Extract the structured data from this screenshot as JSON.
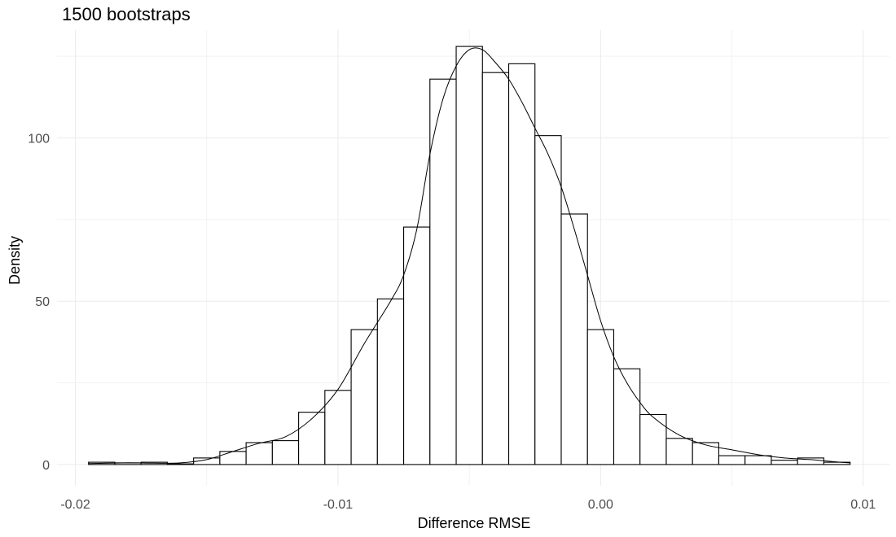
{
  "chart_data": {
    "type": "bar",
    "title": "1500  bootstraps",
    "xlabel": "Difference RMSE",
    "ylabel": "Density",
    "xlim": [
      -0.0207,
      0.011
    ],
    "ylim": [
      -6.5,
      133
    ],
    "x_ticks": [
      -0.02,
      -0.01,
      0.0,
      0.01
    ],
    "x_tick_labels": [
      "-0.02",
      "-0.01",
      "0.00",
      "0.01"
    ],
    "y_ticks": [
      0,
      50,
      100
    ],
    "y_tick_labels": [
      "0",
      "50",
      "100"
    ],
    "x_minor_ticks": [
      -0.015,
      -0.005,
      0.005
    ],
    "y_minor_ticks": [
      25,
      75,
      125
    ],
    "grid": true,
    "legend": "none",
    "bin_width": 0.001,
    "histogram": {
      "bin_centers": [
        -0.019,
        -0.018,
        -0.017,
        -0.016,
        -0.015,
        -0.014,
        -0.013,
        -0.012,
        -0.011,
        -0.01,
        -0.009,
        -0.008,
        -0.007,
        -0.006,
        -0.005,
        -0.004,
        -0.003,
        -0.002,
        -0.001,
        0.0,
        0.001,
        0.002,
        0.003,
        0.004,
        0.005,
        0.006,
        0.007,
        0.008,
        0.009
      ],
      "densities": [
        0.7,
        0.5,
        0.7,
        0.2,
        2.0,
        4.0,
        6.7,
        7.3,
        16.0,
        22.7,
        41.3,
        50.7,
        72.7,
        118.0,
        128.0,
        120.0,
        122.7,
        100.7,
        76.7,
        41.3,
        29.3,
        15.3,
        8.0,
        6.7,
        2.7,
        2.7,
        1.3,
        2.0,
        0.7
      ]
    },
    "density_curve": {
      "x": [
        -0.0195,
        -0.018,
        -0.017,
        -0.016,
        -0.015,
        -0.014,
        -0.013,
        -0.012,
        -0.011,
        -0.01,
        -0.009,
        -0.008,
        -0.0075,
        -0.007,
        -0.0065,
        -0.006,
        -0.0055,
        -0.005,
        -0.0045,
        -0.004,
        -0.0035,
        -0.003,
        -0.0025,
        -0.002,
        -0.0015,
        -0.001,
        -0.0005,
        0.0,
        0.0005,
        0.001,
        0.0015,
        0.002,
        0.003,
        0.004,
        0.005,
        0.006,
        0.007,
        0.008,
        0.009,
        0.0095
      ],
      "y": [
        0.3,
        0.5,
        0.4,
        0.5,
        1.5,
        4.0,
        6.5,
        8.5,
        14.0,
        23.0,
        37.0,
        50.0,
        58.0,
        72.0,
        95.0,
        112.0,
        122.0,
        127.0,
        127.0,
        123.0,
        118.0,
        111.0,
        103.0,
        95.0,
        85.0,
        72.0,
        58.0,
        44.0,
        33.0,
        25.0,
        19.0,
        14.5,
        9.0,
        6.0,
        4.5,
        3.0,
        2.0,
        1.5,
        0.8,
        0.5
      ]
    }
  }
}
